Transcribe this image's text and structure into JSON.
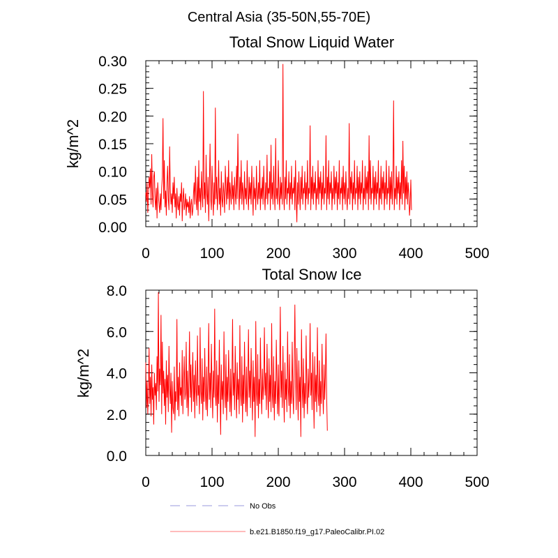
{
  "chart_data": {
    "main_title": "Central Asia (35-50N,55-70E)",
    "colors": {
      "series": "#ff0000",
      "obs": "#9999dd",
      "axis": "#000000"
    },
    "panels": [
      {
        "type": "line",
        "title": "Total Snow Liquid Water",
        "ylabel": "kg/m^2",
        "xlim": [
          0,
          500
        ],
        "ylim": [
          0,
          0.3
        ],
        "xticks": [
          0,
          100,
          200,
          300,
          400,
          500
        ],
        "xtick_labels": [
          "0",
          "100",
          "200",
          "300",
          "400",
          "500"
        ],
        "yticks": [
          0,
          0.05,
          0.1,
          0.15,
          0.2,
          0.25,
          0.3
        ],
        "ytick_labels": [
          "0.00",
          "0.05",
          "0.10",
          "0.15",
          "0.20",
          "0.25",
          "0.30"
        ],
        "minor_y": 0.01,
        "minor_x": 20,
        "series": {
          "name": "b.e21.B1850.f19_g17.PaleoCalibr.PI.02",
          "x_start": 0,
          "x_step": 1,
          "values": [
            0.062,
            0.045,
            0.08,
            0.025,
            0.055,
            0.09,
            0.07,
            0.105,
            0.04,
            0.131,
            0.06,
            0.035,
            0.09,
            0.1,
            0.05,
            0.03,
            0.07,
            0.015,
            0.08,
            0.055,
            0.04,
            0.025,
            0.06,
            0.03,
            0.07,
            0.09,
            0.196,
            0.05,
            0.12,
            0.035,
            0.065,
            0.02,
            0.08,
            0.11,
            0.05,
            0.03,
            0.145,
            0.07,
            0.04,
            0.06,
            0.025,
            0.08,
            0.05,
            0.09,
            0.035,
            0.06,
            0.015,
            0.07,
            0.04,
            0.03,
            0.055,
            0.02,
            0.06,
            0.045,
            0.08,
            0.01,
            0.05,
            0.07,
            0.03,
            0.04,
            0.06,
            0.02,
            0.05,
            0.035,
            0.045,
            0.025,
            0.055,
            0.015,
            0.04,
            0.05,
            0.02,
            0.03,
            0.06,
            0.08,
            0.04,
            0.11,
            0.05,
            0.03,
            0.09,
            0.02,
            0.12,
            0.045,
            0.07,
            0.03,
            0.1,
            0.06,
            0.035,
            0.245,
            0.05,
            0.08,
            0.025,
            0.13,
            0.06,
            0.04,
            0.09,
            0.01,
            0.07,
            0.15,
            0.05,
            0.03,
            0.11,
            0.06,
            0.02,
            0.08,
            0.04,
            0.215,
            0.05,
            0.09,
            0.03,
            0.06,
            0.12,
            0.04,
            0.07,
            0.02,
            0.1,
            0.05,
            0.035,
            0.08,
            0.06,
            0.025,
            0.11,
            0.07,
            0.04,
            0.09,
            0.05,
            0.12,
            0.03,
            0.08,
            0.06,
            0.04,
            0.1,
            0.05,
            0.075,
            0.03,
            0.09,
            0.06,
            0.04,
            0.11,
            0.05,
            0.168,
            0.07,
            0.03,
            0.09,
            0.05,
            0.12,
            0.04,
            0.08,
            0.06,
            0.03,
            0.1,
            0.05,
            0.07,
            0.04,
            0.12,
            0.06,
            0.03,
            0.09,
            0.05,
            0.08,
            0.04,
            0.11,
            0.06,
            0.02,
            0.09,
            0.05,
            0.07,
            0.03,
            0.11,
            0.06,
            0.04,
            0.08,
            0.05,
            0.12,
            0.03,
            0.07,
            0.05,
            0.09,
            0.04,
            0.11,
            0.06,
            0.03,
            0.08,
            0.05,
            0.13,
            0.04,
            0.07,
            0.06,
            0.1,
            0.03,
            0.148,
            0.05,
            0.08,
            0.04,
            0.11,
            0.06,
            0.03,
            0.16,
            0.05,
            0.07,
            0.04,
            0.12,
            0.06,
            0.03,
            0.09,
            0.05,
            0.08,
            0.04,
            0.294,
            0.06,
            0.03,
            0.09,
            0.05,
            0.12,
            0.04,
            0.07,
            0.06,
            0.1,
            0.03,
            0.08,
            0.05,
            0.11,
            0.04,
            0.07,
            0.06,
            0.09,
            0.03,
            0.12,
            0.05,
            0.008,
            0.08,
            0.04,
            0.1,
            0.06,
            0.03,
            0.09,
            0.05,
            0.11,
            0.04,
            0.07,
            0.06,
            0.1,
            0.03,
            0.08,
            0.05,
            0.12,
            0.04,
            0.07,
            0.06,
            0.183,
            0.03,
            0.09,
            0.05,
            0.11,
            0.04,
            0.08,
            0.06,
            0.1,
            0.03,
            0.07,
            0.05,
            0.12,
            0.04,
            0.09,
            0.06,
            0.1,
            0.03,
            0.08,
            0.05,
            0.11,
            0.04,
            0.07,
            0.06,
            0.165,
            0.03,
            0.09,
            0.05,
            0.12,
            0.04,
            0.08,
            0.06,
            0.1,
            0.03,
            0.07,
            0.05,
            0.11,
            0.04,
            0.09,
            0.06,
            0.1,
            0.03,
            0.08,
            0.05,
            0.12,
            0.04,
            0.07,
            0.06,
            0.09,
            0.03,
            0.11,
            0.05,
            0.08,
            0.04,
            0.1,
            0.06,
            0.03,
            0.07,
            0.05,
            0.187,
            0.04,
            0.09,
            0.06,
            0.1,
            0.03,
            0.08,
            0.05,
            0.12,
            0.04,
            0.07,
            0.06,
            0.11,
            0.03,
            0.09,
            0.05,
            0.1,
            0.04,
            0.08,
            0.06,
            0.12,
            0.03,
            0.07,
            0.05,
            0.11,
            0.04,
            0.09,
            0.06,
            0.1,
            0.03,
            0.165,
            0.05,
            0.12,
            0.04,
            0.07,
            0.06,
            0.11,
            0.03,
            0.09,
            0.05,
            0.1,
            0.04,
            0.08,
            0.06,
            0.12,
            0.03,
            0.07,
            0.05,
            0.11,
            0.04,
            0.09,
            0.06,
            0.1,
            0.03,
            0.08,
            0.05,
            0.12,
            0.04,
            0.07,
            0.06,
            0.11,
            0.03,
            0.09,
            0.05,
            0.1,
            0.04,
            0.08,
            0.228,
            0.03,
            0.07,
            0.05,
            0.11,
            0.04,
            0.09,
            0.06,
            0.1,
            0.03,
            0.08,
            0.05,
            0.12,
            0.04,
            0.155,
            0.06,
            0.11,
            0.03,
            0.09,
            0.05,
            0.1,
            0.04,
            0.08,
            0.06,
            0.02,
            0.04,
            0.085,
            0.03
          ]
        }
      },
      {
        "type": "line",
        "title": "Total Snow Ice",
        "ylabel": "kg/m^2",
        "xlim": [
          0,
          500
        ],
        "ylim": [
          0,
          8
        ],
        "xticks": [
          0,
          100,
          200,
          300,
          400,
          500
        ],
        "xtick_labels": [
          "0",
          "100",
          "200",
          "300",
          "400",
          "500"
        ],
        "yticks": [
          0,
          2,
          4,
          6,
          8
        ],
        "ytick_labels": [
          "0.0",
          "2.0",
          "4.0",
          "6.0",
          "8.0"
        ],
        "minor_y": 0.4,
        "minor_x": 20,
        "series": {
          "name": "b.e21.B1850.f19_g17.PaleoCalibr.PI.02",
          "x_start": 0,
          "x_step": 1,
          "values": [
            4.5,
            2.3,
            3.6,
            2.0,
            3.0,
            5.2,
            2.5,
            3.8,
            1.9,
            4.4,
            2.7,
            3.3,
            1.5,
            4.0,
            2.9,
            3.5,
            2.2,
            4.8,
            3.1,
            7.9,
            2.6,
            4.2,
            3.4,
            6.8,
            2.0,
            5.5,
            3.0,
            4.1,
            2.4,
            3.7,
            1.5,
            4.6,
            2.8,
            3.9,
            2.1,
            5.3,
            3.2,
            2.5,
            4.0,
            1.1,
            3.6,
            2.3,
            2.0,
            4.3,
            1.7,
            3.1,
            2.6,
            6.6,
            2.2,
            3.8,
            1.9,
            4.5,
            2.9,
            3.3,
            2.4,
            5.1,
            2.0,
            3.6,
            4.8,
            2.7,
            3.0,
            5.5,
            2.3,
            4.1,
            1.9,
            3.5,
            6.0,
            2.8,
            4.4,
            2.1,
            3.7,
            5.0,
            2.6,
            3.9,
            1.8,
            4.6,
            3.2,
            2.4,
            5.8,
            2.9,
            3.4,
            2.0,
            6.2,
            3.1,
            2.5,
            4.7,
            1.7,
            3.8,
            2.6,
            5.2,
            3.0,
            2.2,
            4.3,
            1.9,
            3.5,
            6.4,
            2.7,
            4.0,
            2.3,
            5.4,
            3.3,
            1.8,
            4.1,
            2.8,
            7.1,
            3.0,
            2.4,
            4.6,
            1.6,
            3.9,
            2.5,
            5.6,
            3.2,
            1.0,
            4.4,
            2.7,
            3.6,
            2.0,
            6.0,
            3.1,
            2.3,
            4.9,
            1.7,
            3.8,
            2.6,
            5.1,
            3.4,
            2.1,
            4.2,
            1.9,
            3.5,
            6.6,
            2.9,
            4.0,
            2.2,
            5.3,
            3.3,
            1.8,
            4.5,
            2.7,
            3.7,
            2.0,
            6.3,
            3.0,
            2.4,
            4.8,
            1.6,
            3.9,
            2.5,
            5.5,
            3.2,
            2.1,
            4.3,
            1.9,
            3.6,
            6.1,
            2.8,
            4.1,
            2.3,
            5.2,
            3.4,
            1.7,
            4.6,
            2.6,
            3.8,
            0.9,
            6.5,
            3.1,
            2.4,
            4.9,
            1.8,
            3.7,
            2.5,
            5.7,
            3.3,
            2.0,
            4.2,
            2.7,
            3.5,
            6.2,
            2.9,
            4.0,
            2.2,
            5.4,
            3.2,
            1.8,
            4.7,
            2.6,
            3.9,
            2.1,
            6.4,
            3.0,
            2.3,
            4.8,
            1.7,
            3.6,
            2.5,
            5.6,
            3.4,
            2.0,
            4.4,
            1.9,
            3.8,
            7.2,
            2.8,
            4.1,
            2.3,
            5.3,
            3.1,
            1.6,
            4.5,
            2.7,
            3.7,
            2.1,
            6.0,
            3.3,
            2.4,
            4.9,
            1.8,
            3.6,
            2.5,
            5.5,
            3.0,
            2.0,
            4.3,
            7.3,
            3.9,
            2.2,
            5.2,
            3.2,
            1.7,
            4.6,
            2.6,
            3.8,
            0.9,
            6.1,
            3.4,
            2.3,
            4.7,
            1.8,
            3.5,
            2.5,
            5.8,
            3.1,
            2.0,
            4.2,
            2.8,
            3.7,
            6.4,
            2.9,
            4.0,
            2.2,
            5.0,
            3.3,
            1.3,
            4.8,
            2.6,
            3.9,
            2.1,
            6.2,
            3.0,
            2.4,
            4.6,
            1.9,
            3.6,
            2.5,
            5.4,
            3.2,
            2.0,
            4.4,
            2.7,
            3.8,
            5.9,
            2.8,
            1.2
          ]
        }
      }
    ],
    "legend": [
      {
        "label": "No Obs",
        "style": "dashed"
      },
      {
        "label": "b.e21.B1850.f19_g17.PaleoCalibr.PI.02",
        "style": "solid"
      }
    ]
  }
}
